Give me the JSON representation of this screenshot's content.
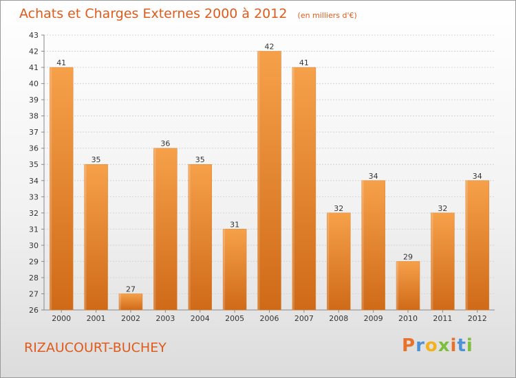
{
  "header": {
    "title": "Achats et Charges Externes 2000 à 2012",
    "subtitle": "(en milliers d'€)"
  },
  "footer": {
    "location": "RIZAUCOURT-BUCHEY",
    "logo": [
      "P",
      "r",
      "o",
      "x",
      "i",
      "t",
      "i"
    ],
    "logo_colors": [
      "#e9722a",
      "#4b92d6",
      "#f3b21c",
      "#7cbf3a",
      "#e9722a",
      "#4b92d6",
      "#7cbf3a"
    ]
  },
  "chart_data": {
    "type": "bar",
    "title": "Achats et Charges Externes 2000 à 2012",
    "subtitle": "(en milliers d'€)",
    "categories": [
      "2000",
      "2001",
      "2002",
      "2003",
      "2004",
      "2005",
      "2006",
      "2007",
      "2008",
      "2009",
      "2010",
      "2011",
      "2012"
    ],
    "values": [
      41,
      35,
      27,
      36,
      35,
      31,
      42,
      41,
      32,
      34,
      29,
      32,
      34
    ],
    "ylim": [
      26,
      43
    ],
    "yticks": [
      26,
      27,
      28,
      29,
      30,
      31,
      32,
      33,
      34,
      35,
      36,
      37,
      38,
      39,
      40,
      41,
      42,
      43
    ],
    "grid": true,
    "bar_color_top": "#f6a04a",
    "bar_color_bottom": "#cf6a18"
  }
}
